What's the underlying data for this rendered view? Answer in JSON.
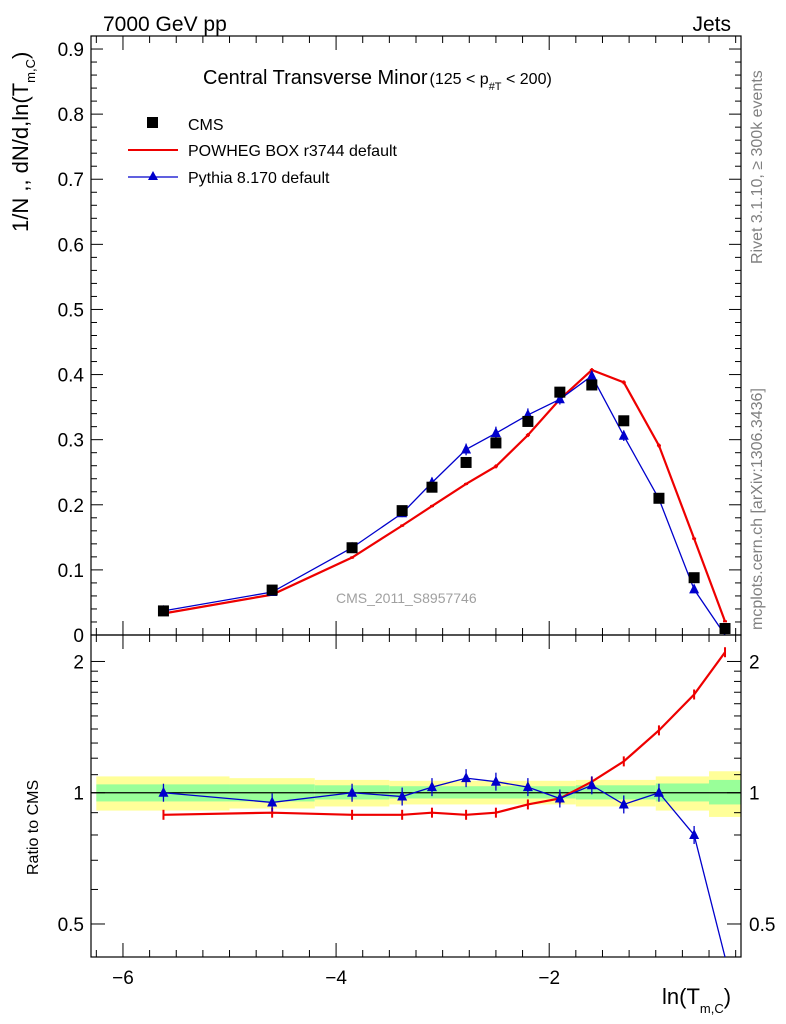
{
  "header": {
    "left": "7000 GeV pp",
    "right": "Jets"
  },
  "side_labels": {
    "rivet": "Rivet 3.1.10, ≥ 300k events",
    "mcplots": "mcplots.cern.ch [arXiv:1306.3436]"
  },
  "watermark": "CMS_2011_S8957746",
  "axis_labels": {
    "top_ylabel": "1/N ,, dN/d,ln(T",
    "top_ylabel_sub": "m,C",
    "top_ylabel_close": ")",
    "bottom_ylabel": "Ratio to CMS",
    "xlabel": "ln(T",
    "xlabel_sub": "m,C",
    "xlabel_close": ")"
  },
  "title": {
    "main": "Central Transverse Minor",
    "range_pre": "(125 < p",
    "range_sub": "#T",
    "range_post": " < 200)"
  },
  "colors": {
    "data": "#000000",
    "powheg": "#ee0000",
    "pythia": "#0000cc",
    "band_inner": "#99ff99",
    "band_outer": "#ffff99"
  },
  "chart_data": [
    {
      "type": "line",
      "panel": "main",
      "xlim": [
        -6.3,
        -0.2
      ],
      "ylim": [
        0,
        0.92
      ],
      "yticks": [
        0,
        0.1,
        0.2,
        0.3,
        0.4,
        0.5,
        0.6,
        0.7,
        0.8,
        0.9
      ],
      "yticklabels": [
        "0",
        "0.1",
        "0.2",
        "0.3",
        "0.4",
        "0.5",
        "0.6",
        "0.7",
        "0.8",
        "0.9"
      ],
      "legend": "top-left",
      "series": [
        {
          "name": "CMS",
          "style": "markers-square",
          "points": [
            {
              "x": -5.62,
              "y": 0.037
            },
            {
              "x": -4.6,
              "y": 0.069
            },
            {
              "x": -3.85,
              "y": 0.134
            },
            {
              "x": -3.38,
              "y": 0.191
            },
            {
              "x": -3.1,
              "y": 0.227
            },
            {
              "x": -2.78,
              "y": 0.265
            },
            {
              "x": -2.5,
              "y": 0.295
            },
            {
              "x": -2.2,
              "y": 0.328
            },
            {
              "x": -1.9,
              "y": 0.373
            },
            {
              "x": -1.6,
              "y": 0.384
            },
            {
              "x": -1.3,
              "y": 0.329
            },
            {
              "x": -0.97,
              "y": 0.21
            },
            {
              "x": -0.64,
              "y": 0.088
            },
            {
              "x": -0.35,
              "y": 0.01
            }
          ]
        },
        {
          "name": "POWHEG BOX r3744 default",
          "style": "line",
          "points": [
            {
              "x": -5.62,
              "y": 0.033,
              "err": 0.002
            },
            {
              "x": -4.6,
              "y": 0.062,
              "err": 0.002
            },
            {
              "x": -3.85,
              "y": 0.119,
              "err": 0.002
            },
            {
              "x": -3.38,
              "y": 0.168,
              "err": 0.002
            },
            {
              "x": -3.1,
              "y": 0.198,
              "err": 0.002
            },
            {
              "x": -2.78,
              "y": 0.232,
              "err": 0.002
            },
            {
              "x": -2.5,
              "y": 0.259,
              "err": 0.003
            },
            {
              "x": -2.2,
              "y": 0.307,
              "err": 0.003
            },
            {
              "x": -1.9,
              "y": 0.362,
              "err": 0.003
            },
            {
              "x": -1.6,
              "y": 0.407,
              "err": 0.003
            },
            {
              "x": -1.3,
              "y": 0.388,
              "err": 0.003
            },
            {
              "x": -0.97,
              "y": 0.291,
              "err": 0.003
            },
            {
              "x": -0.64,
              "y": 0.148,
              "err": 0.002
            },
            {
              "x": -0.35,
              "y": 0.021,
              "err": 0.001
            }
          ]
        },
        {
          "name": "Pythia 8.170 default",
          "style": "line-triangles",
          "points": [
            {
              "x": -5.62,
              "y": 0.037,
              "err": 0.002
            },
            {
              "x": -4.6,
              "y": 0.066,
              "err": 0.003
            },
            {
              "x": -3.85,
              "y": 0.134,
              "err": 0.004
            },
            {
              "x": -3.38,
              "y": 0.187,
              "err": 0.006
            },
            {
              "x": -3.1,
              "y": 0.234,
              "err": 0.008
            },
            {
              "x": -2.78,
              "y": 0.285,
              "err": 0.009
            },
            {
              "x": -2.5,
              "y": 0.31,
              "err": 0.01
            },
            {
              "x": -2.2,
              "y": 0.338,
              "err": 0.01
            },
            {
              "x": -1.9,
              "y": 0.362,
              "err": 0.008
            },
            {
              "x": -1.6,
              "y": 0.398,
              "err": 0.008
            },
            {
              "x": -1.3,
              "y": 0.306,
              "err": 0.008
            },
            {
              "x": -0.97,
              "y": 0.209,
              "err": 0.005
            },
            {
              "x": -0.64,
              "y": 0.07,
              "err": 0.004
            },
            {
              "x": -0.35,
              "y": 0.0,
              "err": 0.001
            }
          ]
        }
      ]
    },
    {
      "type": "line",
      "panel": "ratio",
      "ylabel": "Ratio to CMS",
      "yscale": "log",
      "xlim": [
        -6.3,
        -0.2
      ],
      "ylim": [
        0.42,
        2.3
      ],
      "yticks": [
        0.5,
        1,
        2
      ],
      "yticklabels": [
        "0.5",
        "1",
        "2"
      ],
      "xticks": [
        -6,
        -4,
        -2
      ],
      "xticklabels": [
        "−6",
        "−4",
        "−2"
      ],
      "bands": [
        {
          "x0": -6.25,
          "x1": -5.0,
          "inner": [
            0.955,
            1.045
          ],
          "outer": [
            0.91,
            1.09
          ]
        },
        {
          "x0": -5.0,
          "x1": -4.2,
          "inner": [
            0.955,
            1.045
          ],
          "outer": [
            0.92,
            1.08
          ]
        },
        {
          "x0": -4.2,
          "x1": -3.5,
          "inner": [
            0.965,
            1.04
          ],
          "outer": [
            0.93,
            1.07
          ]
        },
        {
          "x0": -3.5,
          "x1": -1.75,
          "inner": [
            0.97,
            1.035
          ],
          "outer": [
            0.94,
            1.065
          ]
        },
        {
          "x0": -1.75,
          "x1": -1.0,
          "inner": [
            0.965,
            1.04
          ],
          "outer": [
            0.93,
            1.07
          ]
        },
        {
          "x0": -1.0,
          "x1": -0.5,
          "inner": [
            0.955,
            1.05
          ],
          "outer": [
            0.91,
            1.09
          ]
        },
        {
          "x0": -0.5,
          "x1": -0.2,
          "inner": [
            0.94,
            1.07
          ],
          "outer": [
            0.88,
            1.12
          ]
        }
      ],
      "series": [
        {
          "name": "POWHEG BOX r3744 default",
          "points": [
            {
              "x": -5.62,
              "y": 0.89
            },
            {
              "x": -4.6,
              "y": 0.9
            },
            {
              "x": -3.85,
              "y": 0.89
            },
            {
              "x": -3.38,
              "y": 0.89
            },
            {
              "x": -3.1,
              "y": 0.9
            },
            {
              "x": -2.78,
              "y": 0.89
            },
            {
              "x": -2.5,
              "y": 0.9
            },
            {
              "x": -2.2,
              "y": 0.94
            },
            {
              "x": -1.9,
              "y": 0.97
            },
            {
              "x": -1.6,
              "y": 1.06
            },
            {
              "x": -1.3,
              "y": 1.18
            },
            {
              "x": -0.97,
              "y": 1.39
            },
            {
              "x": -0.64,
              "y": 1.68
            },
            {
              "x": -0.35,
              "y": 2.1
            }
          ]
        },
        {
          "name": "Pythia 8.170 default",
          "points": [
            {
              "x": -5.62,
              "y": 1.0
            },
            {
              "x": -4.6,
              "y": 0.95
            },
            {
              "x": -3.85,
              "y": 1.0
            },
            {
              "x": -3.38,
              "y": 0.98
            },
            {
              "x": -3.1,
              "y": 1.03
            },
            {
              "x": -2.78,
              "y": 1.08
            },
            {
              "x": -2.5,
              "y": 1.06
            },
            {
              "x": -2.2,
              "y": 1.03
            },
            {
              "x": -1.9,
              "y": 0.97
            },
            {
              "x": -1.6,
              "y": 1.04
            },
            {
              "x": -1.3,
              "y": 0.94
            },
            {
              "x": -0.97,
              "y": 1.0
            },
            {
              "x": -0.64,
              "y": 0.8
            },
            {
              "x": -0.35,
              "y": 0.33
            }
          ]
        }
      ]
    }
  ]
}
